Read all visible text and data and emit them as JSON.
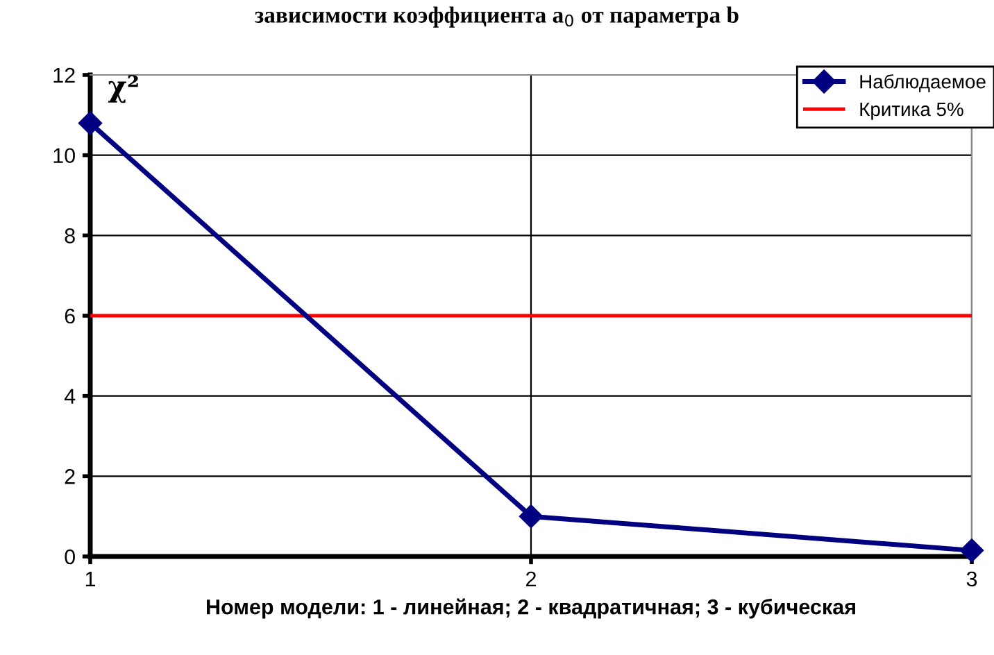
{
  "chart_data": {
    "type": "line",
    "title": "зависимости коэффициента a$_{0}$ от параметра b",
    "xlabel": "Номер модели: 1 - линейная; 2 - квадратичная; 3 - кубическая",
    "ylabel": "χ²",
    "x": [
      1,
      2,
      3
    ],
    "series": [
      {
        "name": "Наблюдаемое",
        "color": "#000080",
        "values": [
          10.8,
          1.0,
          0.15
        ]
      }
    ],
    "ref_lines": [
      {
        "axis": "y",
        "value": 6,
        "label": "Критика 5%",
        "color": "#ff0000",
        "line_style": "solid"
      }
    ],
    "xlim": [
      1,
      3
    ],
    "xticks": [
      1,
      2,
      3
    ],
    "ylim": [
      0,
      12
    ],
    "yticks": [
      0,
      2,
      4,
      6,
      8,
      10,
      12
    ],
    "grid": true,
    "legend": "top right",
    "marker": "diamond",
    "line_style": "solid"
  }
}
